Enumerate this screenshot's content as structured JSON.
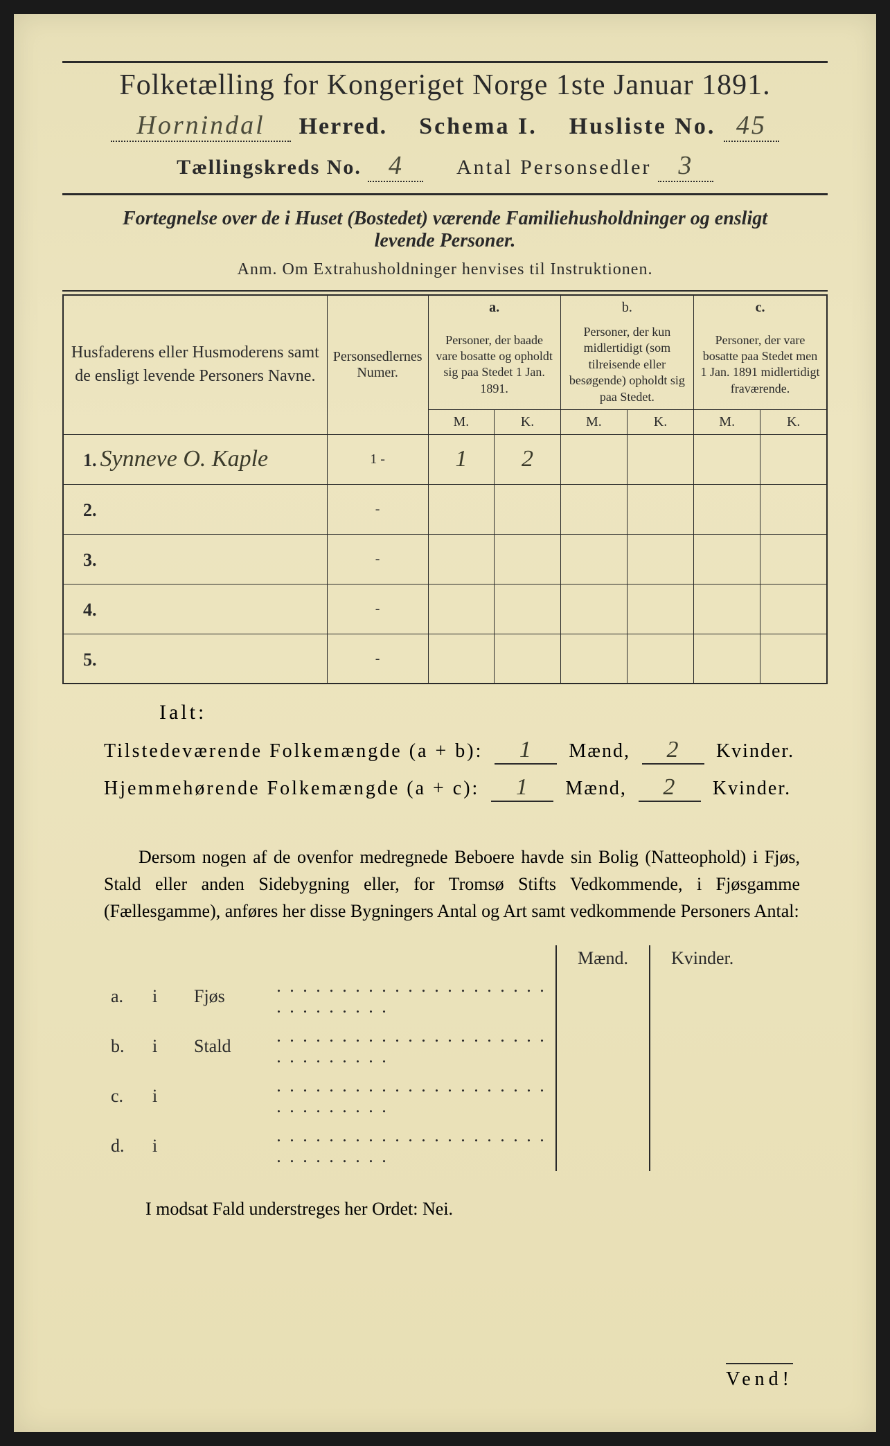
{
  "colors": {
    "paper": "#e8e0b8",
    "ink": "#2a2a2a",
    "handwriting": "#3a3a2a"
  },
  "typography": {
    "title_size_pt": 42,
    "header_size_pt": 34,
    "body_size_pt": 26,
    "table_size_pt": 20,
    "cursive_family": "Brush Script MT"
  },
  "header": {
    "title": "Folketælling for Kongeriget Norge 1ste Januar 1891.",
    "herred_written": "Hornindal",
    "herred_label": "Herred.",
    "schema_label": "Schema I.",
    "husliste_label": "Husliste No.",
    "husliste_no": "45",
    "kreds_label": "Tællingskreds No.",
    "kreds_no": "4",
    "personsedler_label": "Antal Personsedler",
    "personsedler_no": "3"
  },
  "subtitle": {
    "line1": "Fortegnelse over de i Huset (Bostedet) værende Familiehusholdninger og ensligt",
    "line2": "levende Personer."
  },
  "anm": "Anm. Om Extrahusholdninger henvises til Instruktionen.",
  "table": {
    "columns": {
      "names": "Husfaderens eller Husmoderens samt de ensligt levende Personers Navne.",
      "numer": "Personsedlernes Numer.",
      "a_label": "a.",
      "a_text": "Personer, der baade vare bosatte og opholdt sig paa Stedet 1 Jan. 1891.",
      "b_label": "b.",
      "b_text": "Personer, der kun midlertidigt (som tilreisende eller besøgende) opholdt sig paa Stedet.",
      "c_label": "c.",
      "c_text": "Personer, der vare bosatte paa Stedet men 1 Jan. 1891 midlertidigt fraværende.",
      "m": "M.",
      "k": "K."
    },
    "rows": [
      {
        "num": "1.",
        "name": "Synneve O. Kaple",
        "numer": "1 -",
        "a_m": "1",
        "a_k": "2",
        "b_m": "",
        "b_k": "",
        "c_m": "",
        "c_k": ""
      },
      {
        "num": "2.",
        "name": "",
        "numer": "-",
        "a_m": "",
        "a_k": "",
        "b_m": "",
        "b_k": "",
        "c_m": "",
        "c_k": ""
      },
      {
        "num": "3.",
        "name": "",
        "numer": "-",
        "a_m": "",
        "a_k": "",
        "b_m": "",
        "b_k": "",
        "c_m": "",
        "c_k": ""
      },
      {
        "num": "4.",
        "name": "",
        "numer": "-",
        "a_m": "",
        "a_k": "",
        "b_m": "",
        "b_k": "",
        "c_m": "",
        "c_k": ""
      },
      {
        "num": "5.",
        "name": "",
        "numer": "-",
        "a_m": "",
        "a_k": "",
        "b_m": "",
        "b_k": "",
        "c_m": "",
        "c_k": ""
      }
    ]
  },
  "totals": {
    "ialt": "Ialt:",
    "tilstede_label": "Tilstedeværende Folkemængde (a + b):",
    "tilstede_m": "1",
    "tilstede_k": "2",
    "hjemme_label": "Hjemmehørende Folkemængde (a + c):",
    "hjemme_m": "1",
    "hjemme_k": "2",
    "maend": "Mænd,",
    "kvinder": "Kvinder."
  },
  "paragraph": "Dersom nogen af de ovenfor medregnede Beboere havde sin Bolig (Natteophold) i Fjøs, Stald eller anden Sidebygning eller, for Tromsø Stifts Vedkommende, i Fjøsgamme (Fællesgamme), anføres her disse Bygningers Antal og Art samt vedkommende Personers Antal:",
  "buildings": {
    "maend": "Mænd.",
    "kvinder": "Kvinder.",
    "rows": [
      {
        "label": "a.",
        "i": "i",
        "name": "Fjøs"
      },
      {
        "label": "b.",
        "i": "i",
        "name": "Stald"
      },
      {
        "label": "c.",
        "i": "i",
        "name": ""
      },
      {
        "label": "d.",
        "i": "i",
        "name": ""
      }
    ]
  },
  "modsat": "I modsat Fald understreges her Ordet: Nei.",
  "vend": "Vend!"
}
